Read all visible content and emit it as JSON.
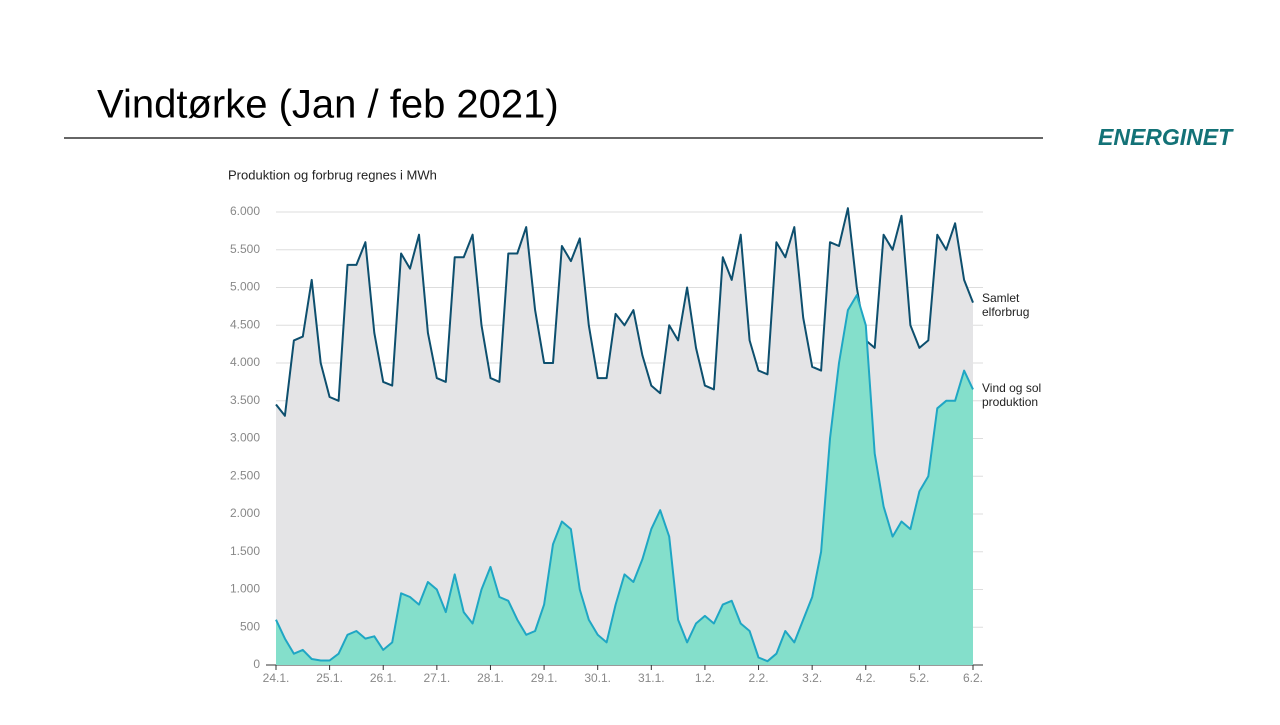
{
  "header": {
    "title": "Vindtørke (Jan / feb 2021)",
    "logo": "ENERGINET"
  },
  "chart_data": {
    "type": "area",
    "subtitle": "Produktion og forbrug regnes i MWh",
    "categories": [
      "24.1.",
      null,
      null,
      null,
      null,
      null,
      "25.1.",
      null,
      null,
      null,
      null,
      null,
      "26.1.",
      null,
      null,
      null,
      null,
      null,
      "27.1.",
      null,
      null,
      null,
      null,
      null,
      "28.1.",
      null,
      null,
      null,
      null,
      null,
      "29.1.",
      null,
      null,
      null,
      null,
      null,
      "30.1.",
      null,
      null,
      null,
      null,
      null,
      "31.1.",
      null,
      null,
      null,
      null,
      null,
      "1.2.",
      null,
      null,
      null,
      null,
      null,
      "2.2.",
      null,
      null,
      null,
      null,
      null,
      "3.2.",
      null,
      null,
      null,
      null,
      null,
      "4.2.",
      null,
      null,
      null,
      null,
      null,
      "5.2.",
      null,
      null,
      null,
      null,
      null,
      "6.2."
    ],
    "series": [
      {
        "name": "Samlet elforbrug",
        "color": "#0d4f6e",
        "fill": "#e4e4e6",
        "values": [
          3450,
          3300,
          4300,
          4350,
          5100,
          4000,
          3550,
          3500,
          5300,
          5300,
          5600,
          4400,
          3750,
          3700,
          5450,
          5250,
          5700,
          4400,
          3800,
          3750,
          5400,
          5400,
          5700,
          4500,
          3800,
          3750,
          5450,
          5450,
          5800,
          4700,
          4000,
          4000,
          5550,
          5350,
          5650,
          4500,
          3800,
          3800,
          4650,
          4500,
          4700,
          4100,
          3700,
          3600,
          4500,
          4300,
          5000,
          4200,
          3700,
          3650,
          5400,
          5100,
          5700,
          4300,
          3900,
          3850,
          5600,
          5400,
          5800,
          4600,
          3950,
          3900,
          5600,
          5550,
          6050,
          5000,
          4300,
          4200,
          5700,
          5500,
          5950,
          4500,
          4200,
          4300,
          5700,
          5500,
          5850,
          5100,
          4800
        ]
      },
      {
        "name": "Vind og sol produktion",
        "color": "#1fa6c4",
        "fill": "#84dfcb",
        "values": [
          600,
          350,
          150,
          200,
          80,
          60,
          60,
          150,
          400,
          450,
          350,
          380,
          200,
          300,
          950,
          900,
          800,
          1100,
          1000,
          700,
          1200,
          700,
          550,
          1000,
          1300,
          900,
          850,
          600,
          400,
          450,
          800,
          1600,
          1900,
          1800,
          1000,
          600,
          400,
          300,
          800,
          1200,
          1100,
          1400,
          1800,
          2050,
          1700,
          600,
          300,
          550,
          650,
          550,
          800,
          850,
          550,
          450,
          100,
          50,
          150,
          450,
          300,
          600,
          900,
          1500,
          3000,
          4000,
          4700,
          4900,
          4500,
          2800,
          2100,
          1700,
          1900,
          1800,
          2300,
          2500,
          3400,
          3500,
          3500,
          3900,
          3650
        ]
      }
    ],
    "ylim": [
      0,
      6000
    ],
    "yticks": [
      0,
      500,
      {
        "value": 1000,
        "label": "1.000"
      },
      {
        "value": 1500,
        "label": "1.500"
      },
      {
        "value": 2000,
        "label": "2.000"
      },
      {
        "value": 2500,
        "label": "2.500"
      },
      {
        "value": 3000,
        "label": "3.000"
      },
      {
        "value": 3500,
        "label": "3.500"
      },
      {
        "value": 4000,
        "label": "4.000"
      },
      {
        "value": 4500,
        "label": "4.500"
      },
      {
        "value": 5000,
        "label": "5.000"
      },
      {
        "value": 5500,
        "label": "5.500"
      },
      {
        "value": 6000,
        "label": "6.000"
      }
    ],
    "grid": true
  }
}
